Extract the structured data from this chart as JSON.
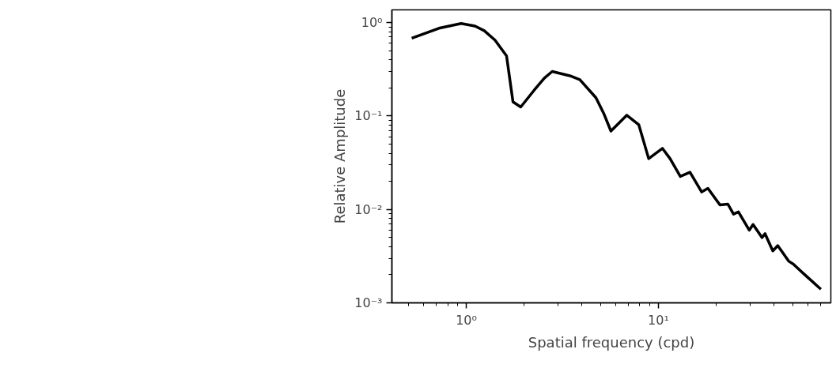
{
  "chart_data": {
    "type": "line",
    "xlabel": "Spatial frequency (cpd)",
    "ylabel": "Relative Amplitude",
    "log": "xy",
    "grid": false,
    "marker": "none",
    "line_style": "solid",
    "xlim": [
      0.41,
      79
    ],
    "ylim": [
      0.001,
      1.37
    ],
    "xticks": [
      {
        "value": 1,
        "label": "10⁰"
      },
      {
        "value": 10,
        "label": "10¹"
      }
    ],
    "yticks": [
      {
        "value": 0.001,
        "label": "10⁻³"
      },
      {
        "value": 0.01,
        "label": "10⁻²"
      },
      {
        "value": 0.1,
        "label": "10⁻¹"
      },
      {
        "value": 1,
        "label": "10⁰"
      }
    ],
    "x": [
      0.52,
      0.72,
      0.94,
      1.11,
      1.24,
      1.41,
      1.62,
      1.75,
      1.92,
      2.26,
      2.55,
      2.8,
      3.46,
      3.9,
      4.73,
      5.2,
      5.66,
      6.84,
      7.9,
      8.9,
      10.5,
      11.5,
      13.0,
      14.6,
      16.8,
      18.1,
      20.9,
      23.0,
      24.6,
      26.1,
      29.7,
      31.1,
      34.6,
      35.9,
      39.4,
      41.8,
      47.6,
      50.4,
      57.8,
      70.1
    ],
    "series": [
      {
        "color": "#000000",
        "values": [
          0.68,
          0.87,
          0.98,
          0.92,
          0.82,
          0.65,
          0.44,
          0.142,
          0.125,
          0.19,
          0.255,
          0.3,
          0.27,
          0.245,
          0.157,
          0.106,
          0.069,
          0.102,
          0.081,
          0.035,
          0.045,
          0.035,
          0.0226,
          0.025,
          0.0154,
          0.0168,
          0.0112,
          0.0114,
          0.0089,
          0.0094,
          0.006,
          0.0069,
          0.005,
          0.0055,
          0.0036,
          0.0041,
          0.0028,
          0.0026,
          0.002,
          0.0014
        ]
      }
    ]
  }
}
